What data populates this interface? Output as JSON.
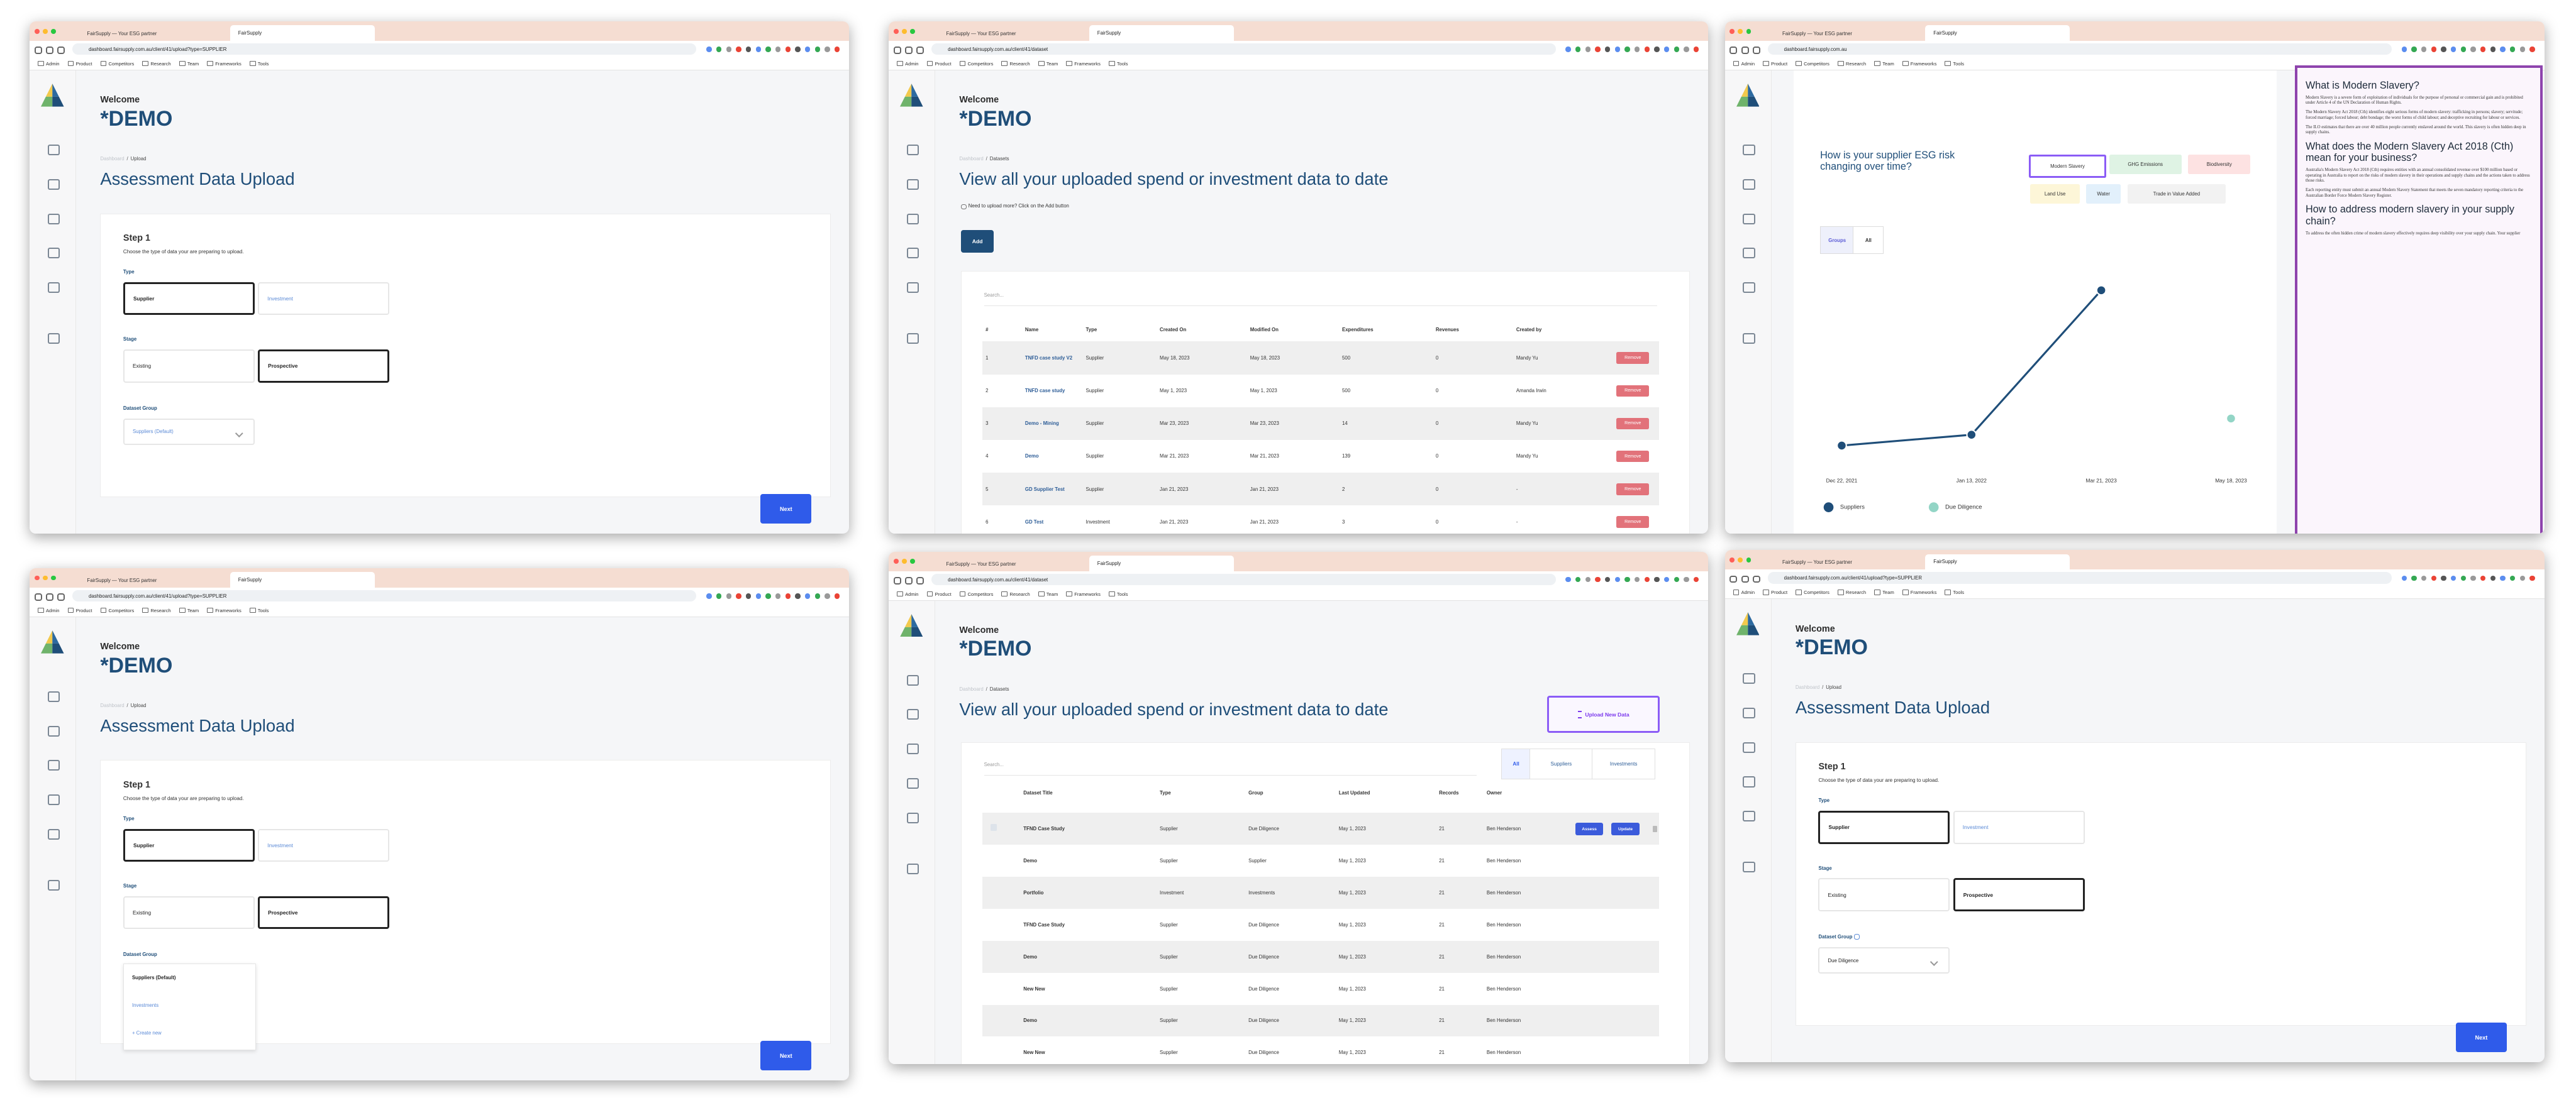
{
  "browser": {
    "tabs": [
      "FairSupply — Your ESG partner",
      "FairSupply"
    ],
    "bookmarks": [
      "Admin",
      "Product",
      "Competitors",
      "Research",
      "Team",
      "Frameworks",
      "Tools"
    ]
  },
  "app": {
    "welcome": "Welcome",
    "org": "*DEMO",
    "breadcrumb_root": "Dashboard",
    "breadcrumb_sep": "/"
  },
  "windows": [
    {
      "view": "upload",
      "url": "dashboard.fairsupply.com.au/client/41/upload?type=SUPPLIER",
      "breadcrumb": "Upload",
      "title": "Assessment Data Upload",
      "step": "Step 1",
      "step_hint": "Choose the type of data your are preparing to upload.",
      "type_label": "Type",
      "type_options": [
        "Supplier",
        "Investment"
      ],
      "stage_label": "Stage",
      "stage_options": [
        "Existing",
        "Prospective"
      ],
      "group_label": "Dataset Group",
      "group_value": "Suppliers (Default)",
      "next": "Next"
    },
    {
      "view": "datasets",
      "url": "dashboard.fairsupply.com.au/client/41/dataset",
      "breadcrumb": "Datasets",
      "title": "View all your uploaded spend or investment data to date",
      "hint": "Need to upload more? Click on the Add button",
      "add": "Add",
      "search": "Search...",
      "columns": [
        "#",
        "Name",
        "Type",
        "Created On",
        "Modified On",
        "Expenditures",
        "Revenues",
        "Created by"
      ],
      "rows": [
        [
          "1",
          "TNFD case study V2",
          "Supplier",
          "May 18, 2023",
          "May 18, 2023",
          "500",
          "0",
          "Mandy Yu"
        ],
        [
          "2",
          "TNFD case study",
          "Supplier",
          "May 1, 2023",
          "May 1, 2023",
          "500",
          "0",
          "Amanda Irwin"
        ],
        [
          "3",
          "Demo - Mining",
          "Supplier",
          "Mar 23, 2023",
          "Mar 23, 2023",
          "14",
          "0",
          "Mandy Yu"
        ],
        [
          "4",
          "Demo",
          "Supplier",
          "Mar 21, 2023",
          "Mar 21, 2023",
          "139",
          "0",
          "Mandy Yu"
        ],
        [
          "5",
          "GD Supplier Test",
          "Supplier",
          "Jan 21, 2023",
          "Jan 21, 2023",
          "2",
          "0",
          "-"
        ],
        [
          "6",
          "GD Test",
          "Investment",
          "Jan 21, 2023",
          "Jan 21, 2023",
          "3",
          "0",
          "-"
        ]
      ],
      "remove": "Remove"
    },
    {
      "view": "insights",
      "url": "dashboard.fairsupply.com.au",
      "chips": [
        "Modern Slavery",
        "GHG Emissions",
        "Biodiversity",
        "Land Use",
        "Water",
        "Trade in Value Added"
      ],
      "toggle": [
        "Groups",
        "All"
      ],
      "info": [
        {
          "heading": "What is Modern Slavery?",
          "paragraphs": [
            "Modern Slavery is a severe form of exploitation of individuals for the purpose of personal or commercial gain and is prohibited under Article 4 of the UN Declaration of Human Rights.",
            "The Modern Slavery Act 2018 (Cth) identifies eight serious forms of modern slavery: trafficking in persons; slavery; servitude; forced marriage; forced labour; debt bondage; the worst forms of child labour; and deceptive recruiting for labour or services.",
            "The ILO estimates that there are over 40 million people currently enslaved around the world. This slavery is often hidden deep in supply chains."
          ]
        },
        {
          "heading": "What does the Modern Slavery Act 2018 (Cth) mean for your business?",
          "paragraphs": [
            "Australia's Modern Slavery Act 2018 (Cth) requires entities with an annual consolidated revenue over $100 million based or operating in Australia to report on the risks of modern slavery in their operations and supply chains and the actions taken to address those risks.",
            "Each reporting entity must submit an annual Modern Slavery Statement that meets the seven mandatory reporting criteria to the Australian Border Force Modern Slavery Register."
          ]
        },
        {
          "heading": "How to address modern slavery in your supply chain?",
          "paragraphs": [
            "To address the often hidden crime of modern slavery effectively requires deep visibility over your supply chain. Your supplier"
          ]
        }
      ]
    },
    {
      "view": "upload",
      "url": "dashboard.fairsupply.com.au/client/41/upload?type=SUPPLIER",
      "breadcrumb": "Upload",
      "title": "Assessment Data Upload",
      "step": "Step 1",
      "step_hint": "Choose the type of data your are preparing to upload.",
      "type_label": "Type",
      "type_options": [
        "Supplier",
        "Investment"
      ],
      "stage_label": "Stage",
      "stage_options": [
        "Existing",
        "Prospective"
      ],
      "group_label": "Dataset Group",
      "group_options": [
        "Suppliers (Default)",
        "Investments",
        "+ Create new"
      ],
      "next": "Next"
    },
    {
      "view": "datasets2",
      "url": "dashboard.fairsupply.com.au/client/41/dataset",
      "breadcrumb": "Datasets",
      "title": "View all your uploaded spend or investment data to date",
      "upload": "Upload New Data",
      "search": "Search...",
      "filters": [
        "All",
        "Suppliers",
        "Investments"
      ],
      "columns": [
        "Dataset Title",
        "Type",
        "Group",
        "Last Updated",
        "Records",
        "Owner"
      ],
      "rows": [
        [
          "TFND Case Study",
          "Supplier",
          "Due Diligence",
          "May 1, 2023",
          "21",
          "Ben Henderson"
        ],
        [
          "Demo",
          "Supplier",
          "Supplier",
          "May 1, 2023",
          "21",
          "Ben Henderson"
        ],
        [
          "Portfolio",
          "Investment",
          "Investments",
          "May 1, 2023",
          "21",
          "Ben Henderson"
        ],
        [
          "TFND Case Study",
          "Supplier",
          "Due Diligence",
          "May 1, 2023",
          "21",
          "Ben Henderson"
        ],
        [
          "Demo",
          "Supplier",
          "Due Diligence",
          "May 1, 2023",
          "21",
          "Ben Henderson"
        ],
        [
          "New New",
          "Supplier",
          "Due Diligence",
          "May 1, 2023",
          "21",
          "Ben Henderson"
        ],
        [
          "Demo",
          "Supplier",
          "Due Diligence",
          "May 1, 2023",
          "21",
          "Ben Henderson"
        ],
        [
          "New New",
          "Supplier",
          "Due Diligence",
          "May 1, 2023",
          "21",
          "Ben Henderson"
        ]
      ],
      "actions": [
        "Assess",
        "Update"
      ]
    },
    {
      "view": "upload",
      "url": "dashboard.fairsupply.com.au/client/41/upload?type=SUPPLIER",
      "breadcrumb": "Upload",
      "title": "Assessment Data Upload",
      "step": "Step 1",
      "step_hint": "Choose the type of data your are preparing to upload.",
      "type_label": "Type",
      "type_options": [
        "Supplier",
        "Investment"
      ],
      "stage_label": "Stage",
      "stage_options": [
        "Existing",
        "Prospective"
      ],
      "group_label": "Dataset Group",
      "group_value": "Due Diligence",
      "next": "Next"
    }
  ],
  "chart_data": {
    "type": "line",
    "title": "How is your supplier ESG risk changing over time?",
    "categories": [
      "Dec 22, 2021",
      "Jan 13, 2022",
      "Mar 21, 2023",
      "May 18, 2023"
    ],
    "series": [
      {
        "name": "Suppliers",
        "color": "#1f4e79",
        "values": [
          6,
          12,
          92,
          null
        ]
      },
      {
        "name": "Due Diligence",
        "color": "#93d5c6",
        "values": [
          null,
          null,
          null,
          21
        ]
      }
    ],
    "ylim": [
      0,
      100
    ]
  }
}
